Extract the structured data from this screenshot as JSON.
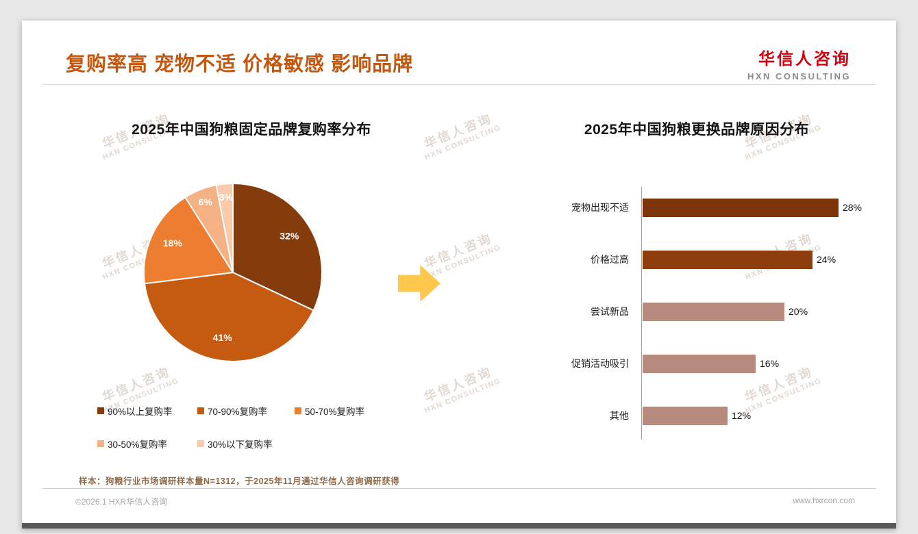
{
  "page": {
    "title": "复购率高 宠物不适 价格敏感 影响品牌",
    "title_color": "#C4570E",
    "footnote": "样本：狗粮行业市场调研样本量N=1312，于2025年11月通过华信人咨询调研获得",
    "footer_left": "©2026.1 HXR华信人咨询",
    "footer_right": "www.hxrcon.com"
  },
  "logo": {
    "zh": "华信人咨询",
    "en": "HXN CONSULTING",
    "zh_color": "#D7000F",
    "en_color": "#8c8c8c"
  },
  "watermark": {
    "line1": "华信人咨询",
    "line2": "HXN CONSULTING"
  },
  "arrow": {
    "name": "right-arrow",
    "color": "#FFC84D"
  },
  "chart_data": [
    {
      "type": "pie",
      "title": "2025年中国狗粮固定品牌复购率分布",
      "labels": [
        "90%以上复购率",
        "70-90%复购率",
        "50-70%复购率",
        "30-50%复购率",
        "30%以下复购率"
      ],
      "values": [
        32,
        41,
        18,
        6,
        3
      ],
      "value_labels": [
        "32%",
        "41%",
        "18%",
        "6%",
        "3%"
      ],
      "colors": [
        "#843C0C",
        "#C55A11",
        "#ED7D31",
        "#F4B183",
        "#F8CBAD"
      ],
      "start_angle_deg": 0,
      "direction": "clockwise",
      "legend_position": "bottom"
    },
    {
      "type": "bar",
      "orientation": "horizontal",
      "title": "2025年中国狗粮更换品牌原因分布",
      "categories": [
        "宠物出现不适",
        "价格过高",
        "尝试新品",
        "促销活动吸引",
        "其他"
      ],
      "values": [
        28,
        24,
        20,
        16,
        12
      ],
      "value_labels": [
        "28%",
        "24%",
        "20%",
        "16%",
        "12%"
      ],
      "colors": [
        "#7E3409",
        "#8E3D0D",
        "#B68B7D",
        "#B68B7D",
        "#B68B7D"
      ],
      "xlim": [
        0,
        30
      ],
      "grid": false,
      "legend_position": "none"
    }
  ]
}
